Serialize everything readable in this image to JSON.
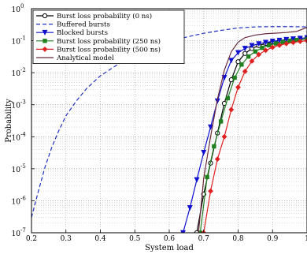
{
  "chart_data": {
    "type": "line",
    "title": "",
    "xlabel": "System load",
    "ylabel": "Probability",
    "xlim": [
      0.2,
      1.0
    ],
    "ylim_log10": [
      -7,
      0
    ],
    "y_scale": "log",
    "grid": true,
    "legend_position": "top-left",
    "x_ticks": [
      {
        "v": 0.2,
        "label": "0.2"
      },
      {
        "v": 0.3,
        "label": "0.3"
      },
      {
        "v": 0.4,
        "label": "0.4"
      },
      {
        "v": 0.5,
        "label": "0.5"
      },
      {
        "v": 0.6,
        "label": "0.6"
      },
      {
        "v": 0.7,
        "label": "0.7"
      },
      {
        "v": 0.8,
        "label": "0.8"
      },
      {
        "v": 0.9,
        "label": "0.9"
      },
      {
        "v": 1.0,
        "label": "1"
      }
    ],
    "y_ticks": [
      {
        "e": 0,
        "label": "0"
      },
      {
        "e": -1,
        "label": "-1"
      },
      {
        "e": -2,
        "label": "-2"
      },
      {
        "e": -3,
        "label": "-3"
      },
      {
        "e": -4,
        "label": "-4"
      },
      {
        "e": -5,
        "label": "-5"
      },
      {
        "e": -6,
        "label": "-6"
      },
      {
        "e": -7,
        "label": "-7"
      }
    ],
    "y_tick_base": "10",
    "series": [
      {
        "name": "Burst loss probability (0 ns)",
        "color": "#000000",
        "dash": "",
        "marker": "circle-open",
        "points": [
          [
            0.68,
            1e-07
          ],
          [
            0.7,
            1.6e-06
          ],
          [
            0.72,
            1.5e-05
          ],
          [
            0.74,
            0.00013
          ],
          [
            0.76,
            0.0011
          ],
          [
            0.78,
            0.006
          ],
          [
            0.8,
            0.022
          ],
          [
            0.82,
            0.04
          ],
          [
            0.84,
            0.057
          ],
          [
            0.86,
            0.07
          ],
          [
            0.88,
            0.082
          ],
          [
            0.9,
            0.092
          ],
          [
            0.92,
            0.1
          ],
          [
            0.94,
            0.107
          ],
          [
            0.96,
            0.112
          ],
          [
            0.98,
            0.117
          ],
          [
            1.0,
            0.122
          ]
        ]
      },
      {
        "name": "Buffered bursts",
        "color": "#2030c0",
        "dash": "5,3",
        "marker": "none",
        "points": [
          [
            0.2,
            3e-07
          ],
          [
            0.22,
            2e-06
          ],
          [
            0.24,
            1.2e-05
          ],
          [
            0.26,
            5e-05
          ],
          [
            0.28,
            0.00016
          ],
          [
            0.3,
            0.00045
          ],
          [
            0.33,
            0.0013
          ],
          [
            0.36,
            0.0032
          ],
          [
            0.4,
            0.008
          ],
          [
            0.45,
            0.018
          ],
          [
            0.5,
            0.034
          ],
          [
            0.55,
            0.058
          ],
          [
            0.6,
            0.09
          ],
          [
            0.65,
            0.13
          ],
          [
            0.7,
            0.17
          ],
          [
            0.75,
            0.21
          ],
          [
            0.8,
            0.25
          ],
          [
            0.85,
            0.27
          ],
          [
            0.9,
            0.275
          ],
          [
            0.95,
            0.275
          ],
          [
            1.0,
            0.27
          ]
        ]
      },
      {
        "name": "Blocked bursts",
        "color": "#1010d0",
        "dash": "",
        "marker": "triangle-down",
        "points": [
          [
            0.64,
            1e-07
          ],
          [
            0.66,
            6e-07
          ],
          [
            0.68,
            4.5e-06
          ],
          [
            0.7,
            3.2e-05
          ],
          [
            0.72,
            0.0002
          ],
          [
            0.74,
            0.0013
          ],
          [
            0.76,
            0.007
          ],
          [
            0.78,
            0.024
          ],
          [
            0.8,
            0.042
          ],
          [
            0.82,
            0.057
          ],
          [
            0.84,
            0.07
          ],
          [
            0.86,
            0.08
          ],
          [
            0.88,
            0.088
          ],
          [
            0.9,
            0.096
          ],
          [
            0.92,
            0.102
          ],
          [
            0.94,
            0.108
          ],
          [
            0.96,
            0.113
          ],
          [
            0.98,
            0.118
          ],
          [
            1.0,
            0.123
          ]
        ]
      },
      {
        "name": "Burst loss probability (250 ns)",
        "color": "#208020",
        "dash": "",
        "marker": "square",
        "points": [
          [
            0.69,
            1e-07
          ],
          [
            0.71,
            5.5e-06
          ],
          [
            0.73,
            5e-05
          ],
          [
            0.75,
            0.0003
          ],
          [
            0.77,
            0.0016
          ],
          [
            0.79,
            0.007
          ],
          [
            0.81,
            0.018
          ],
          [
            0.83,
            0.032
          ],
          [
            0.85,
            0.046
          ],
          [
            0.87,
            0.06
          ],
          [
            0.89,
            0.072
          ],
          [
            0.91,
            0.082
          ],
          [
            0.93,
            0.091
          ],
          [
            0.95,
            0.099
          ],
          [
            0.97,
            0.105
          ],
          [
            1.0,
            0.11
          ]
        ]
      },
      {
        "name": "Burst loss probability (500 ns)",
        "color": "#e02020",
        "dash": "",
        "marker": "diamond",
        "points": [
          [
            0.7,
            1e-07
          ],
          [
            0.72,
            2e-06
          ],
          [
            0.74,
            2e-05
          ],
          [
            0.76,
            0.0001
          ],
          [
            0.78,
            0.0007
          ],
          [
            0.8,
            0.0035
          ],
          [
            0.82,
            0.011
          ],
          [
            0.84,
            0.023
          ],
          [
            0.86,
            0.037
          ],
          [
            0.88,
            0.05
          ],
          [
            0.9,
            0.062
          ],
          [
            0.92,
            0.072
          ],
          [
            0.94,
            0.081
          ],
          [
            0.96,
            0.088
          ],
          [
            0.98,
            0.095
          ],
          [
            1.0,
            0.1
          ]
        ]
      },
      {
        "name": "Analytical model",
        "color": "#6a2a3a",
        "dash": "",
        "marker": "none",
        "points": [
          [
            0.685,
            1e-07
          ],
          [
            0.7,
            5e-06
          ],
          [
            0.72,
            0.0001
          ],
          [
            0.74,
            0.0015
          ],
          [
            0.76,
            0.012
          ],
          [
            0.78,
            0.045
          ],
          [
            0.8,
            0.09
          ],
          [
            0.82,
            0.125
          ],
          [
            0.85,
            0.15
          ],
          [
            0.88,
            0.165
          ],
          [
            0.91,
            0.172
          ],
          [
            0.94,
            0.18
          ],
          [
            0.97,
            0.195
          ],
          [
            1.0,
            0.26
          ]
        ]
      }
    ]
  }
}
